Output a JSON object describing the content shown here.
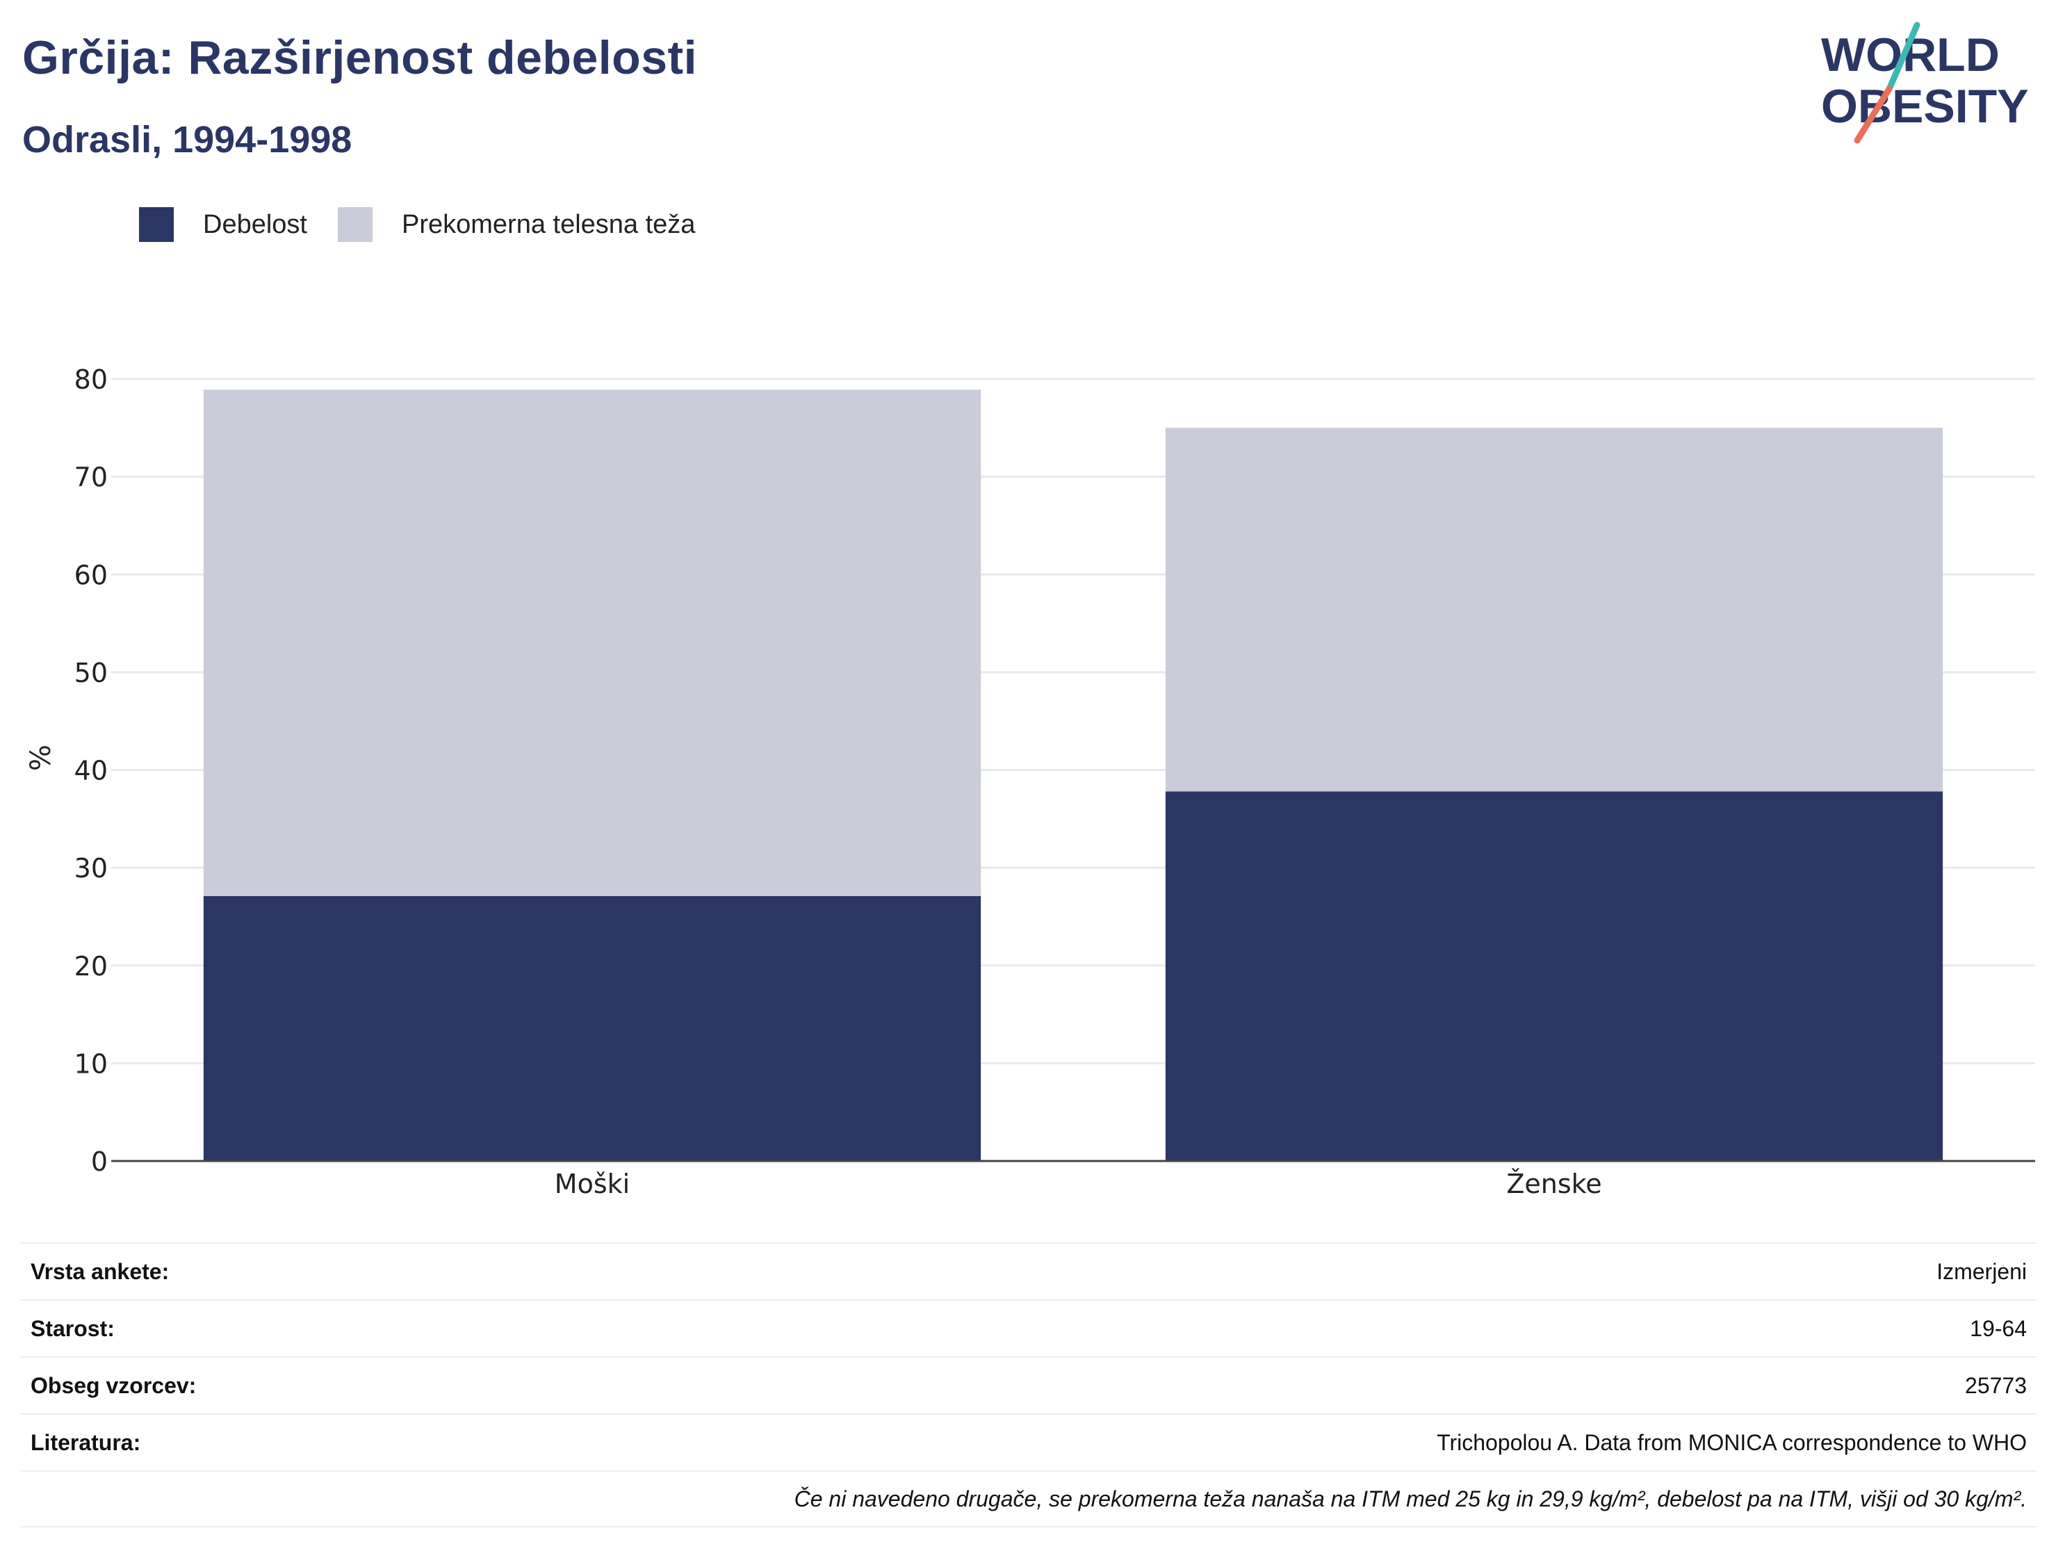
{
  "header": {
    "title": "Grčija: Razširjenost debelosti",
    "subtitle": "Odrasli, 1994-1998"
  },
  "logo": {
    "line1": "WORLD",
    "line2": "OBESITY"
  },
  "colors": {
    "obesity": "#2b3664",
    "overweight": "#cacdd9",
    "title": "#2b3664",
    "logo_teal": "#3fb8b5",
    "logo_coral": "#e8705a"
  },
  "chart_data": {
    "type": "bar",
    "stacked": true,
    "categories": [
      "Moški",
      "Ženske"
    ],
    "series": [
      {
        "name": "Debelost",
        "values": [
          27.1,
          37.8
        ]
      },
      {
        "name": "Prekomerna telesna teža",
        "values": [
          51.8,
          37.2
        ]
      }
    ],
    "ylabel": "%",
    "ylim": [
      0,
      80
    ],
    "yticks": [
      "0",
      "10",
      "20",
      "30",
      "40",
      "50",
      "60",
      "70",
      "80"
    ],
    "grid": true,
    "legend": "top-left"
  },
  "info": {
    "rows": [
      {
        "label": "Vrsta ankete:",
        "value": "Izmerjeni"
      },
      {
        "label": "Starost:",
        "value": "19-64"
      },
      {
        "label": "Obseg vzorcev:",
        "value": "25773"
      },
      {
        "label": "Literatura:",
        "value": "Trichopolou A. Data from MONICA correspondence to WHO"
      }
    ],
    "note": "Če ni navedeno drugače, se prekomerna teža nanaša na ITM med 25 kg in 29,9 kg/m², debelost pa na ITM, višji od 30 kg/m²."
  }
}
